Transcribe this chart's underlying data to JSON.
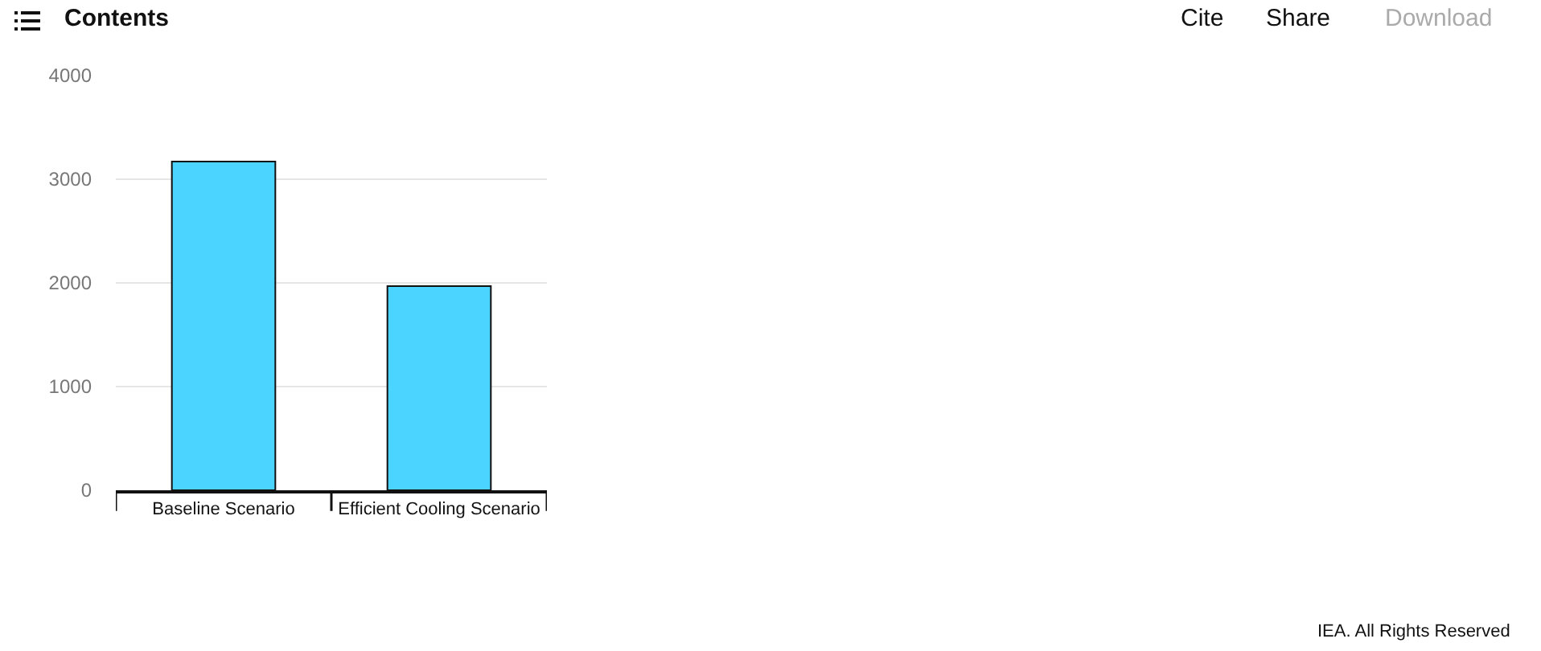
{
  "chart_data": {
    "type": "bar",
    "categories": [
      "Baseline Scenario",
      "Efficient Cooling Scenario"
    ],
    "values": [
      3170,
      1970
    ],
    "color": "#4ad4ff",
    "ylim": [
      0,
      4000
    ],
    "yticks": [
      0,
      1000,
      2000,
      3000,
      4000
    ],
    "grid": "y",
    "annotations": [
      "Contents",
      "Cite",
      "Share",
      "Download",
      "IEA. All Rights Reserved"
    ]
  }
}
